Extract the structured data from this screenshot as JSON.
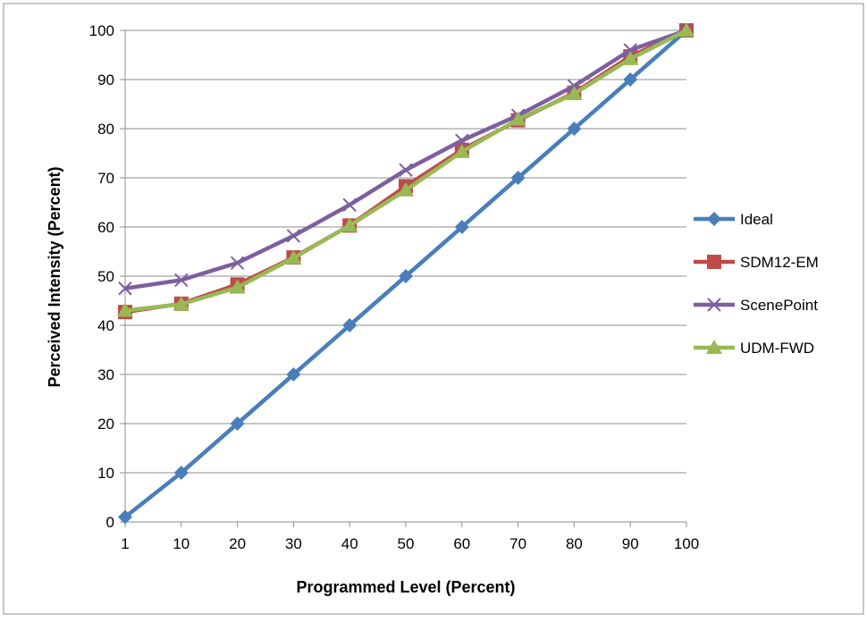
{
  "chart_data": {
    "type": "line",
    "categories": [
      "1",
      "10",
      "20",
      "30",
      "40",
      "50",
      "60",
      "70",
      "80",
      "90",
      "100"
    ],
    "series": [
      {
        "name": "Ideal",
        "color": "#4a7ebb",
        "marker": "diamond",
        "values": [
          1,
          10,
          20,
          30,
          40,
          50,
          60,
          70,
          80,
          90,
          100
        ]
      },
      {
        "name": "SDM12-EM",
        "color": "#be4b48",
        "marker": "square",
        "values": [
          42.7,
          44.4,
          48.3,
          53.8,
          60.3,
          68.3,
          75.7,
          81.7,
          87.3,
          94.7,
          100
        ]
      },
      {
        "name": "ScenePoint",
        "color": "#7d5fa0",
        "marker": "x",
        "values": [
          47.5,
          49.2,
          52.7,
          58.2,
          64.5,
          71.6,
          77.6,
          82.7,
          88.7,
          96.0,
          100
        ]
      },
      {
        "name": "UDM-FWD",
        "color": "#98b954",
        "marker": "triangle",
        "values": [
          43.0,
          44.3,
          47.7,
          53.7,
          60.3,
          67.5,
          75.3,
          81.9,
          87.1,
          94.2,
          100
        ]
      }
    ],
    "xlabel": "Programmed Level (Percent)",
    "ylabel": "Perceived Intensity (Percent)",
    "ylim": [
      0,
      100
    ],
    "yticks": [
      "0",
      "10",
      "20",
      "30",
      "40",
      "50",
      "60",
      "70",
      "80",
      "90",
      "100"
    ],
    "grid": "horizontal",
    "legend_position": "right"
  }
}
